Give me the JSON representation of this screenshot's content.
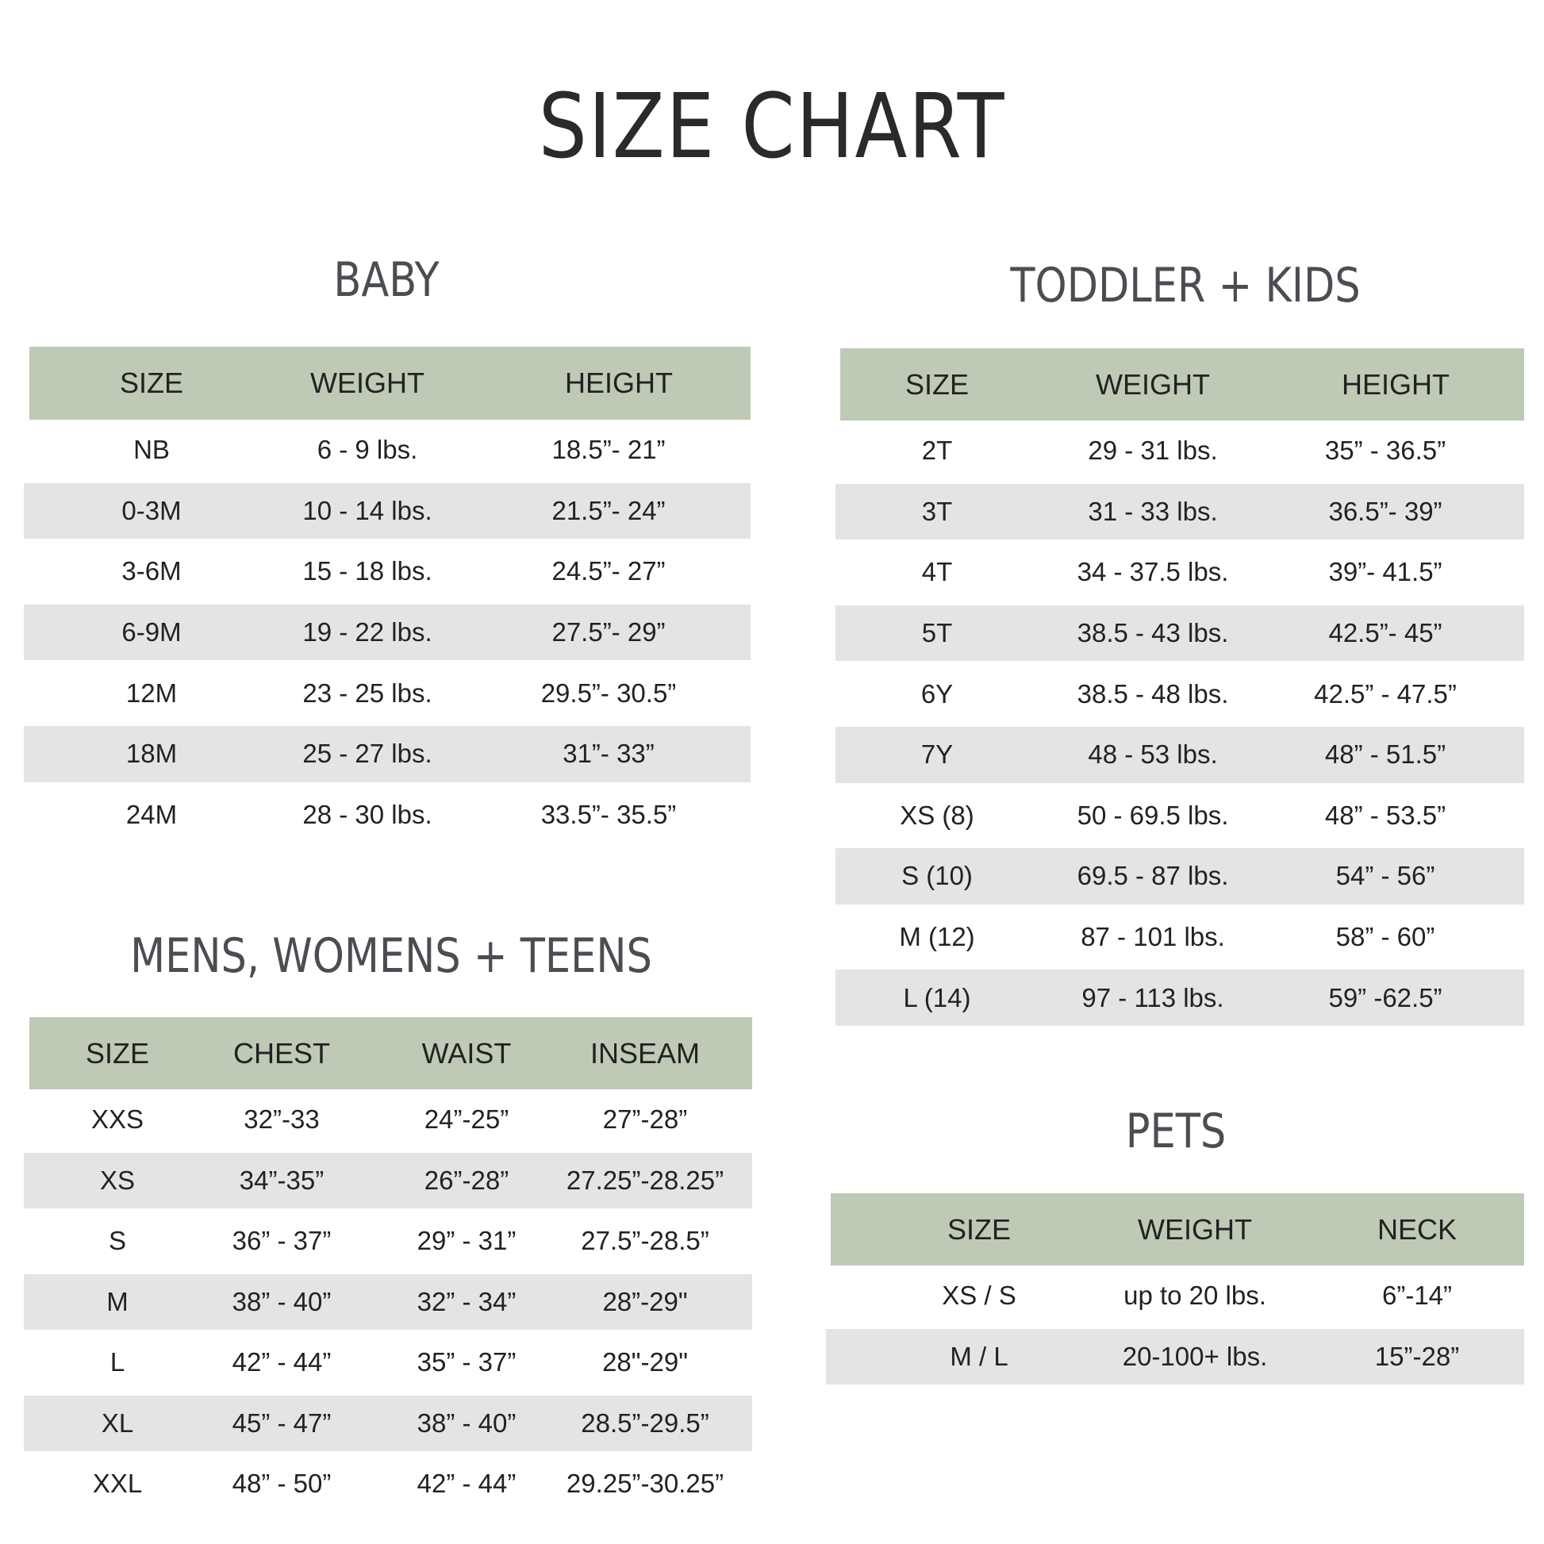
{
  "title": "SIZE CHART",
  "colors": {
    "header_bg": "#bfcab6",
    "row_alt_bg": "#e4e4e4",
    "text": "#222222"
  },
  "baby": {
    "heading": "BABY",
    "columns": [
      "SIZE",
      "WEIGHT",
      "HEIGHT"
    ],
    "rows": [
      [
        "NB",
        "6 - 9 lbs.",
        "18.5”- 21”"
      ],
      [
        "0-3M",
        "10 - 14  lbs.",
        "21.5”- 24”"
      ],
      [
        "3-6M",
        "15 - 18  lbs.",
        "24.5”- 27”"
      ],
      [
        "6-9M",
        "19 - 22  lbs.",
        "27.5”- 29”"
      ],
      [
        "12M",
        "23 - 25  lbs.",
        "29.5”- 30.5”"
      ],
      [
        "18M",
        "25 - 27 lbs.",
        "31”- 33”"
      ],
      [
        "24M",
        "28 - 30 lbs.",
        "33.5”- 35.5”"
      ]
    ]
  },
  "toddler_kids": {
    "heading": "TODDLER + KIDS",
    "columns": [
      "SIZE",
      "WEIGHT",
      "HEIGHT"
    ],
    "rows": [
      [
        "2T",
        "29 - 31 lbs.",
        "35” - 36.5”"
      ],
      [
        "3T",
        "31 - 33 lbs.",
        "36.5”- 39”"
      ],
      [
        "4T",
        "34 - 37.5 lbs.",
        "39”- 41.5”"
      ],
      [
        "5T",
        "38.5 - 43 lbs.",
        "42.5”- 45”"
      ],
      [
        "6Y",
        "38.5 - 48 lbs.",
        "42.5” - 47.5”"
      ],
      [
        "7Y",
        "48 - 53 lbs.",
        "48” - 51.5”"
      ],
      [
        "XS (8)",
        "50 - 69.5 lbs.",
        "48” - 53.5”"
      ],
      [
        "S (10)",
        "69.5 - 87 lbs.",
        "54” - 56”"
      ],
      [
        "M (12)",
        "87 - 101 lbs.",
        "58” - 60”"
      ],
      [
        "L (14)",
        "97 - 113 lbs.",
        "59” -62.5”"
      ]
    ]
  },
  "adults": {
    "heading": "MENS, WOMENS + TEENS",
    "columns": [
      "SIZE",
      "CHEST",
      "WAIST",
      "INSEAM"
    ],
    "rows": [
      [
        "XXS",
        "32”-33",
        "24”-25”",
        "27”-28”"
      ],
      [
        "XS",
        "34”-35”",
        "26”-28”",
        "27.25”-28.25”"
      ],
      [
        "S",
        "36” - 37”",
        "29” - 31”",
        "27.5”-28.5”"
      ],
      [
        "M",
        "38” - 40”",
        "32” - 34”",
        "28”-29\""
      ],
      [
        "L",
        "42” - 44”",
        "35” - 37”",
        "28\"-29\""
      ],
      [
        "XL",
        "45” - 47”",
        "38” - 40”",
        "28.5”-29.5”"
      ],
      [
        "XXL",
        "48” - 50”",
        "42” - 44”",
        "29.25”-30.25”"
      ]
    ]
  },
  "pets": {
    "heading": "PETS",
    "columns": [
      "SIZE",
      "WEIGHT",
      "NECK"
    ],
    "rows": [
      [
        "XS / S",
        "up to 20 lbs.",
        "6”-14”"
      ],
      [
        "M / L",
        "20-100+  lbs.",
        "15”-28”"
      ]
    ]
  }
}
